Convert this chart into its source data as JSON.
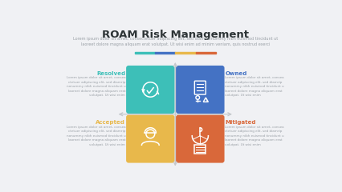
{
  "title": "ROAM Risk Management",
  "subtitle": "Lorem ipsum dolor sit amet, consectetuer adipiscing elit, sed diam nonummy nibh euismod tincidunt ut\nlaoreet dolore magna aliquam erat volutpat. Ut wisi enim ad minim veniam, quis nostrud exerci",
  "bg_color": "#f0f1f4",
  "quadrants": [
    {
      "label": "Resolved",
      "color": "#3dbfb8",
      "text_color": "#3dbfb8",
      "icon": "resolved",
      "col": 0,
      "row": 1
    },
    {
      "label": "Owned",
      "color": "#4472c4",
      "text_color": "#4472c4",
      "icon": "owned",
      "col": 1,
      "row": 1
    },
    {
      "label": "Accepted",
      "color": "#e8b84b",
      "text_color": "#e8b84b",
      "icon": "accepted",
      "col": 0,
      "row": 0
    },
    {
      "label": "Mitigated",
      "color": "#d9683a",
      "text_color": "#d9683a",
      "icon": "mitigated",
      "col": 1,
      "row": 0
    }
  ],
  "lorem": "Lorem ipsum dolor sit amet, consea\nctetuer adipiscing elit, sed diamrip\nnonummy nibh euismod tincidunt u\nlaoreet dolore magna aliquam erat\nvolutpat. Ut wisi enim",
  "bar_colors": [
    "#3dbfb8",
    "#4472c4",
    "#e8b84b",
    "#d9683a"
  ],
  "arrow_color": "#c5c8cc",
  "text_color": "#9aa0a6"
}
